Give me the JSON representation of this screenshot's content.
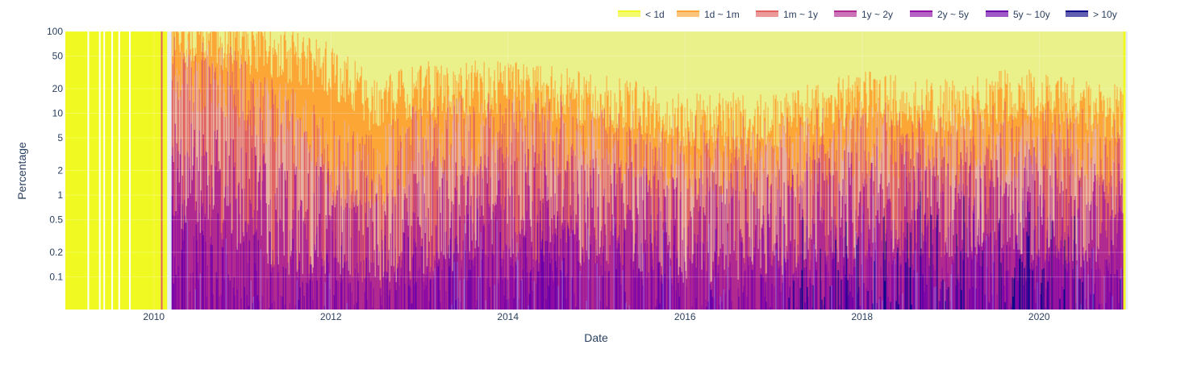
{
  "chart_data": {
    "type": "area",
    "stacked": true,
    "normalized_percent": true,
    "xlabel": "Date",
    "ylabel": "Percentage",
    "x_range": [
      "2009-01-01",
      "2020-12-31"
    ],
    "x_ticks": [
      "2010",
      "2012",
      "2014",
      "2016",
      "2018",
      "2020"
    ],
    "y_scale": "log",
    "y_range": [
      0.04,
      100
    ],
    "y_ticks": [
      "100",
      "50",
      "20",
      "10",
      "5",
      "2",
      "1",
      "0.5",
      "0.2",
      "0.1"
    ],
    "y_tick_values": [
      100,
      50,
      20,
      10,
      5,
      2,
      1,
      0.5,
      0.2,
      0.1
    ],
    "grid": true,
    "legend_position": "top-right",
    "legend_orientation": "horizontal",
    "series": [
      {
        "name": "< 1d",
        "color": "#f0f921"
      },
      {
        "name": "1d ~ 1m",
        "color": "#fca636"
      },
      {
        "name": "1m ~ 1y",
        "color": "#e16462"
      },
      {
        "name": "1y ~ 2y",
        "color": "#b12a90"
      },
      {
        "name": "2y ~ 5y",
        "color": "#8f0da4"
      },
      {
        "name": "5y ~ 10y",
        "color": "#6a00a8"
      },
      {
        "name": "> 10y",
        "color": "#0d0887"
      }
    ],
    "boundary_samples": {
      "description_units": "cumulative percentage from top of 100% stack, i.e. y-value of lower edge of each band",
      "years": [
        2010.2,
        2011.0,
        2011.5,
        2012.0,
        2012.5,
        2013.0,
        2014.0,
        2015.0,
        2016.0,
        2017.0,
        2018.0,
        2019.0,
        2020.0,
        2020.9
      ],
      "one_day_boundary": [
        85,
        70,
        50,
        35,
        12,
        20,
        20,
        15,
        8,
        8,
        15,
        12,
        18,
        10
      ],
      "one_month_boundary": [
        40,
        20,
        8,
        3,
        2,
        5,
        6,
        5,
        3,
        3,
        5,
        4,
        5,
        3
      ],
      "one_year_boundary": [
        2,
        1,
        0.5,
        0.5,
        0.3,
        0.5,
        0.8,
        0.6,
        0.4,
        0.5,
        0.8,
        0.8,
        0.8,
        0.5
      ],
      "two_year_boundary": [
        0.2,
        0.1,
        0.08,
        0.08,
        0.06,
        0.1,
        0.2,
        0.15,
        0.1,
        0.12,
        0.2,
        0.25,
        0.2,
        0.15
      ]
    }
  }
}
